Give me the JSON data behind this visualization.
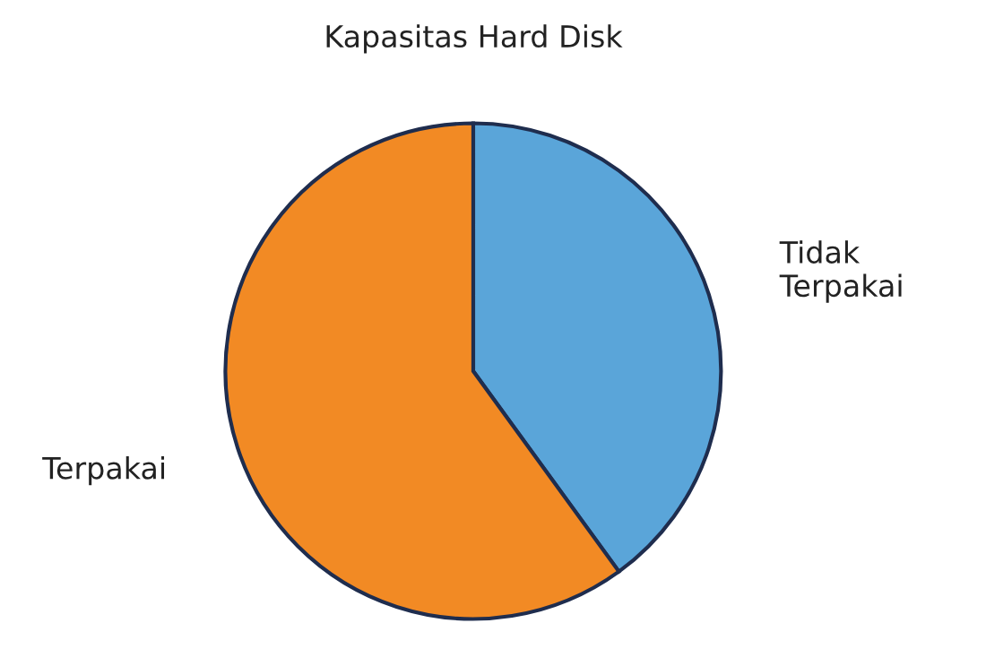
{
  "chart_data": {
    "type": "pie",
    "title": "Kapasitas Hard Disk",
    "categories": [
      "Tidak\nTerpakai",
      "Terpakai"
    ],
    "values": [
      40,
      60
    ],
    "colors": [
      "#5aa5d9",
      "#f28a24"
    ]
  }
}
